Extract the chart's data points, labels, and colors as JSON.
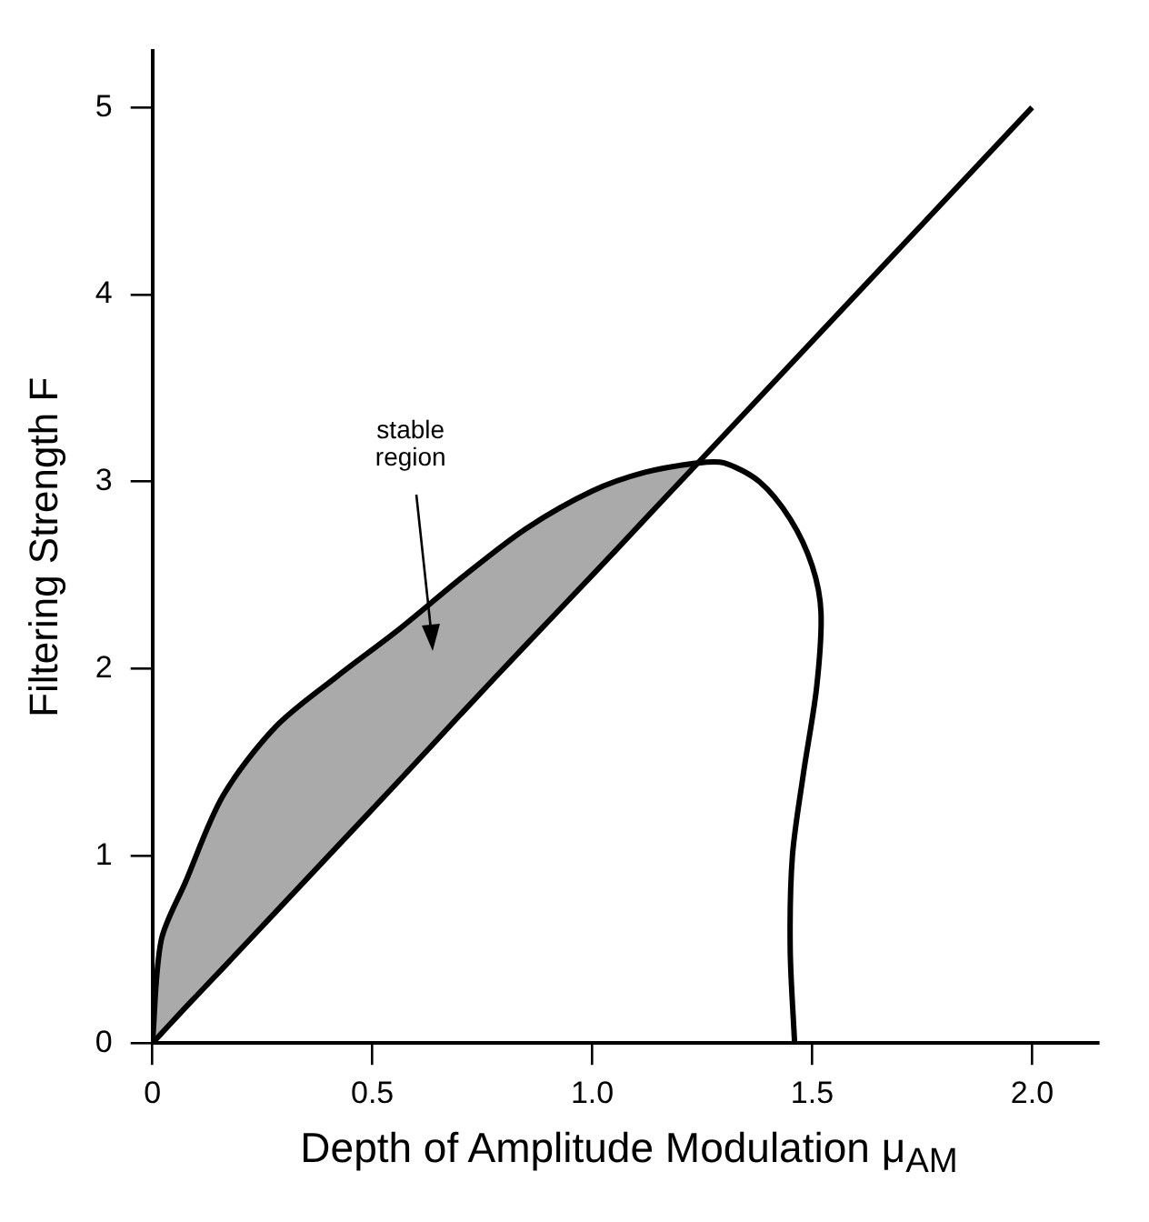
{
  "chart_data": {
    "type": "line",
    "xlabel": "Depth of Amplitude Modulation μ$_{AM}$",
    "ylabel": "Filtering Strength F",
    "xlim": [
      0,
      2.15
    ],
    "ylim": [
      0,
      5.3
    ],
    "xticks": [
      0,
      0.5,
      {
        "value": 1,
        "label": "1.0"
      },
      1.5,
      {
        "value": 2,
        "label": "2.0"
      }
    ],
    "yticks": [
      0,
      1,
      2,
      3,
      4,
      5
    ],
    "grid": false,
    "legend": false,
    "marker": "none",
    "line_style": "solid",
    "series": [
      {
        "color": "#000000",
        "x": [
          0,
          0.02,
          0.075,
          0.16,
          0.28,
          0.42,
          0.56,
          0.71,
          0.85,
          1.0,
          1.12,
          1.24,
          2.0
        ],
        "values": [
          0,
          0.05,
          0.19,
          0.4,
          0.7,
          1.05,
          1.4,
          1.78,
          2.13,
          2.5,
          2.8,
          3.1,
          5
        ],
        "lower": [
          0,
          0.05,
          0.19,
          0.4,
          0.7,
          1.05,
          1.4,
          1.78,
          2.13,
          2.5,
          2.8,
          3.1,
          null
        ],
        "upper": [
          0,
          0.55,
          0.86,
          1.32,
          1.69,
          1.96,
          2.21,
          2.5,
          2.75,
          2.95,
          3.05,
          3.1,
          null
        ]
      },
      {
        "color": "#000000",
        "x": [
          0,
          0.02,
          0.075,
          0.16,
          0.28,
          0.42,
          0.56,
          0.71,
          0.85,
          1.0,
          1.12,
          1.24,
          1.3,
          1.38,
          1.45,
          1.5,
          1.52,
          1.51,
          1.48,
          1.455,
          1.45,
          1.46
        ],
        "values": [
          0,
          0.55,
          0.86,
          1.32,
          1.69,
          1.96,
          2.21,
          2.5,
          2.75,
          2.95,
          3.05,
          3.1,
          3.1,
          3.0,
          2.8,
          2.55,
          2.3,
          1.9,
          1.44,
          1.0,
          0.5,
          0
        ]
      }
    ],
    "annotations": [
      "stable region"
    ]
  }
}
